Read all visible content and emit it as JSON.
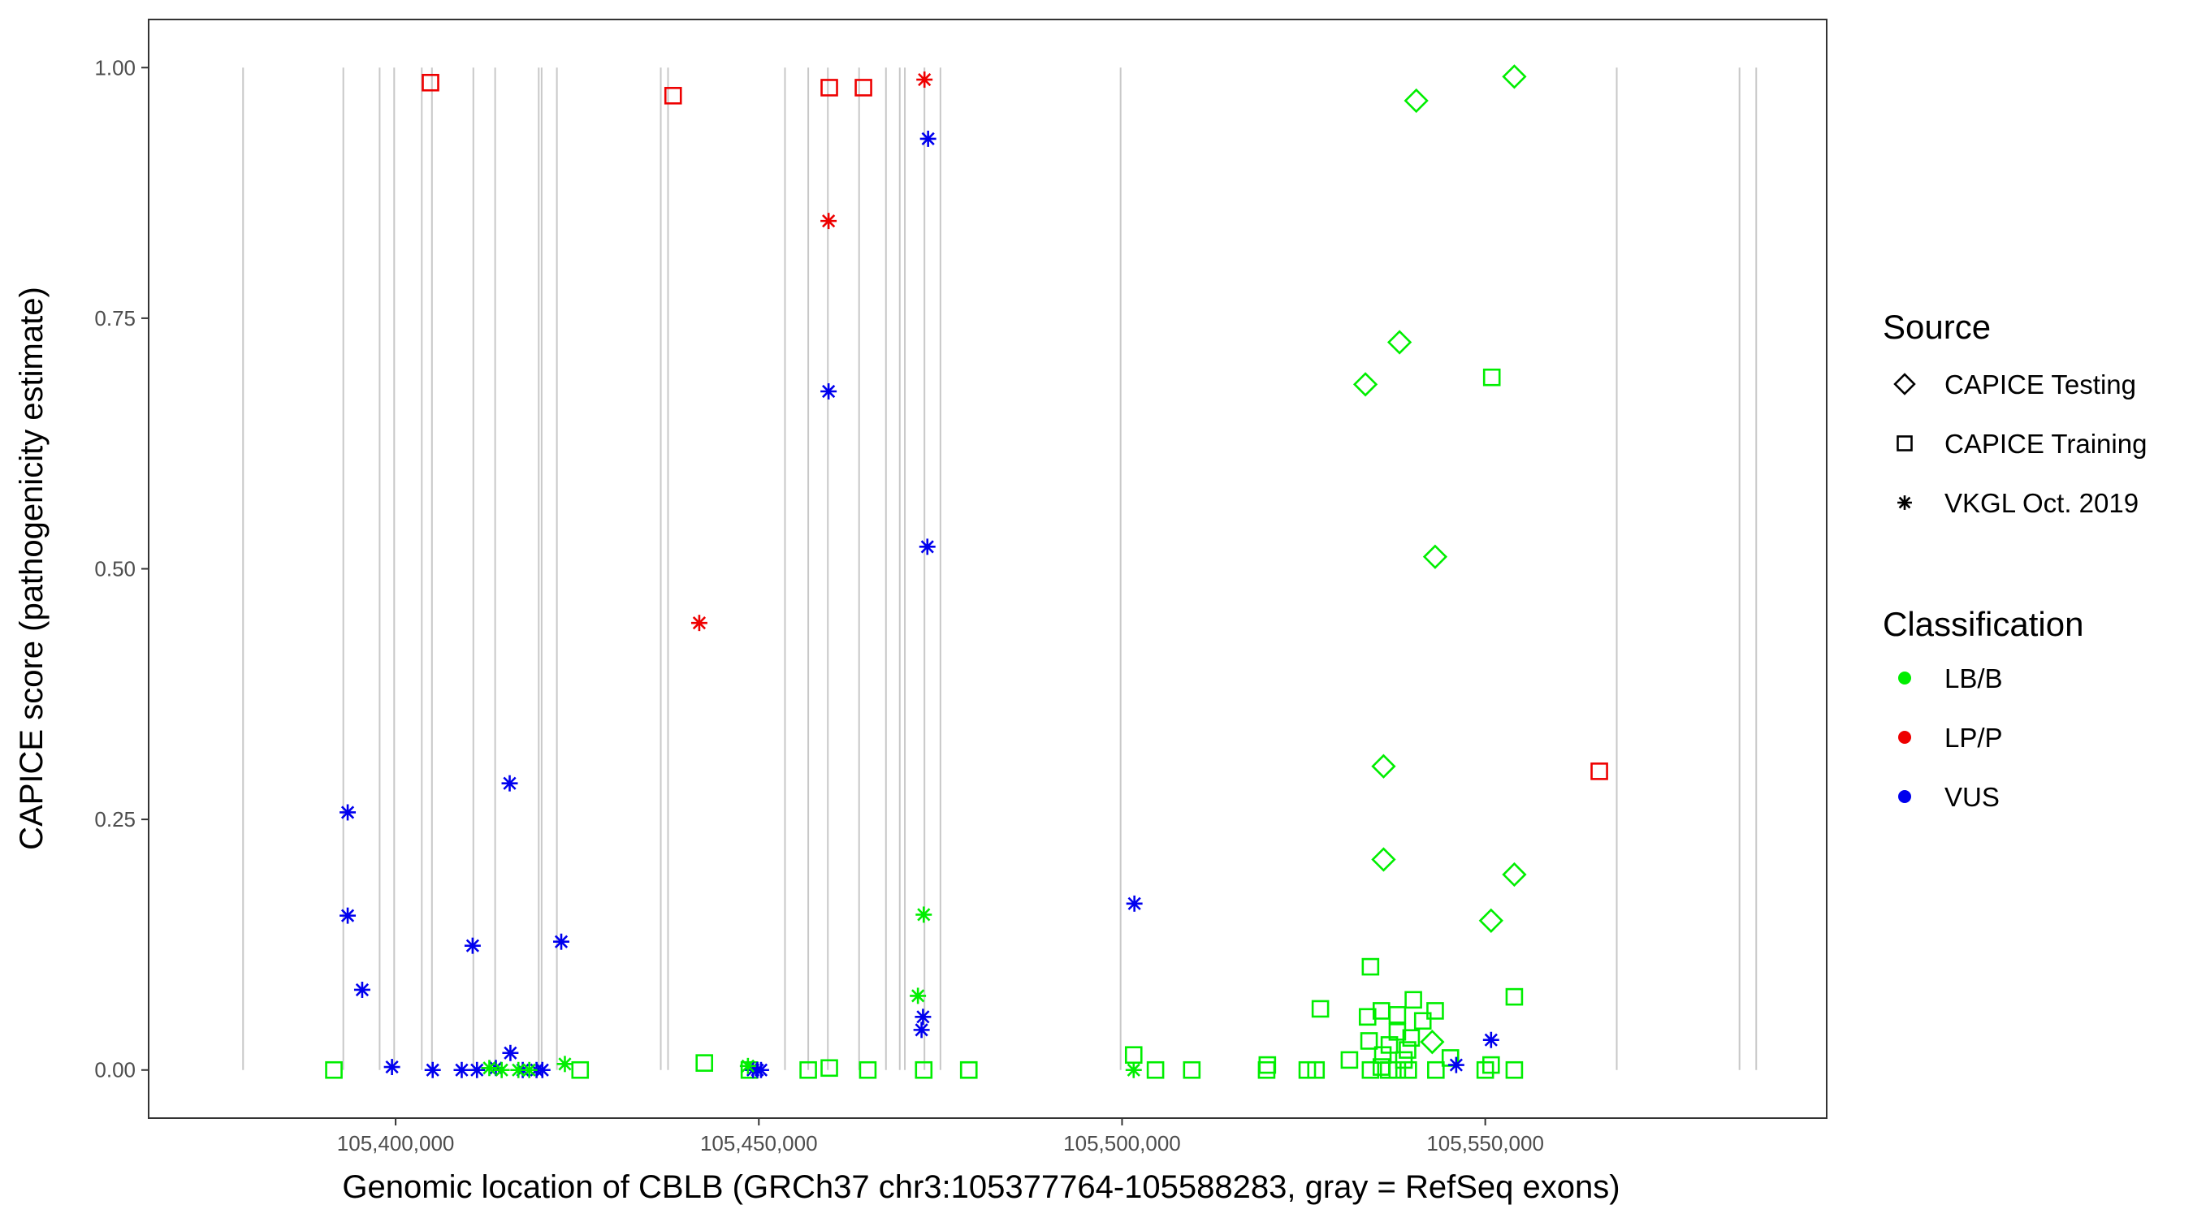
{
  "chart_data": {
    "type": "scatter",
    "xlabel": "Genomic location of CBLB (GRCh37 chr3:105377764-105588283, gray = RefSeq exons)",
    "ylabel": "CAPICE score (pathogenicity estimate)",
    "xlim": [
      105366000,
      105597000
    ],
    "ylim": [
      -0.048,
      1.048
    ],
    "x_ticks": [
      105400000,
      105450000,
      105500000,
      105550000
    ],
    "x_tick_labels": [
      "105,400,000",
      "105,450,000",
      "105,500,000",
      "105,550,000"
    ],
    "y_ticks": [
      0,
      0.25,
      0.5,
      0.75,
      1.0
    ],
    "y_tick_labels": [
      "0.00",
      "0.25",
      "0.50",
      "0.75",
      "1.00"
    ],
    "grid": false,
    "exon_lines": [
      105379000,
      105392800,
      105397800,
      105399800,
      105403600,
      105405000,
      105410700,
      105413700,
      105419700,
      105420100,
      105422200,
      105436500,
      105437500,
      105453600,
      105456800,
      105459500,
      105463800,
      105467500,
      105469400,
      105470100,
      105472800,
      105475000,
      105499800,
      105568100,
      105585000,
      105587300
    ],
    "legend": {
      "position": "right",
      "source_title": "Source",
      "source_items": [
        {
          "label": "CAPICE Testing",
          "shape": "diamond"
        },
        {
          "label": "CAPICE Training",
          "shape": "square"
        },
        {
          "label": "VKGL Oct. 2019",
          "shape": "asterisk"
        }
      ],
      "class_title": "Classification",
      "class_items": [
        {
          "label": "LB/B",
          "color": "#00ee00"
        },
        {
          "label": "LP/P",
          "color": "#ee0000"
        },
        {
          "label": "VUS",
          "color": "#0000ee"
        }
      ]
    },
    "series": [
      {
        "source": "CAPICE Testing",
        "classification": "LB/B",
        "x": [
          105540500,
          105554000,
          105538200,
          105533500,
          105543100,
          105536000,
          105536000,
          105554000,
          105550800,
          105542700
        ],
        "y": [
          0.967,
          0.991,
          0.726,
          0.684,
          0.512,
          0.303,
          0.21,
          0.195,
          0.149,
          0.028
        ]
      },
      {
        "source": "CAPICE Training",
        "classification": "LP/P",
        "x": [
          105404800,
          105438200,
          105459700,
          105464400,
          105565700
        ],
        "y": [
          0.985,
          0.972,
          0.98,
          0.98,
          0.298
        ]
      },
      {
        "source": "CAPICE Training",
        "classification": "LB/B",
        "x": [
          105550900,
          105534200,
          105527300,
          105554000,
          105540100,
          105535700,
          105537900,
          105541400,
          105533800,
          105537900,
          105539800,
          105534000,
          105543100,
          105536800,
          105539300,
          105535900,
          105545200,
          105501600,
          105538800,
          105520000,
          105531300,
          105550800,
          105391500,
          105425400,
          105442500,
          105448700,
          105456800,
          105459700,
          105465000,
          105472700,
          105478900,
          105478900,
          105504600,
          105509600,
          105519900,
          105525500,
          105526700,
          105534200,
          105536700,
          105539400,
          105543200,
          105550000,
          105554000,
          105537900,
          105535700
        ],
        "y": [
          0.691,
          0.103,
          0.061,
          0.073,
          0.07,
          0.059,
          0.055,
          0.049,
          0.053,
          0.038,
          0.032,
          0.029,
          0.059,
          0.025,
          0.02,
          0.015,
          0.012,
          0.015,
          0.01,
          0.005,
          0.01,
          0.005,
          0.0,
          0.0,
          0.007,
          0.0,
          0.0,
          0.002,
          0.0,
          0.0,
          0.0,
          0.0,
          0.0,
          0.0,
          0.0,
          0.0,
          0.0,
          0.0,
          0.0,
          0.0,
          0.0,
          0.0,
          0.0,
          0.0,
          0.003
        ]
      },
      {
        "source": "VKGL Oct. 2019",
        "classification": "LP/P",
        "x": [
          105472800,
          105459600,
          105441800
        ],
        "y": [
          0.988,
          0.847,
          0.446
        ]
      },
      {
        "source": "VKGL Oct. 2019",
        "classification": "VUS",
        "x": [
          105473300,
          105459600,
          105473200,
          105393400,
          105393400,
          105415700,
          105410600,
          105422800,
          105395400,
          105415800,
          105472600,
          105472400,
          105501700,
          105550800,
          105546000,
          105399500,
          105405100,
          105409100,
          105411200,
          105413800,
          105417500,
          105419400,
          105420200,
          105449200,
          105449800,
          105450300
        ],
        "y": [
          0.929,
          0.677,
          0.522,
          0.257,
          0.154,
          0.286,
          0.124,
          0.128,
          0.08,
          0.017,
          0.053,
          0.04,
          0.166,
          0.03,
          0.005,
          0.003,
          0.0,
          0.0,
          0.0,
          0.002,
          0.0,
          0.0,
          0.0,
          0.0,
          0.0,
          0.0
        ]
      },
      {
        "source": "VKGL Oct. 2019",
        "classification": "LB/B",
        "x": [
          105472700,
          105471900,
          105501600,
          105423300,
          105412900,
          105414600,
          105416900,
          105418400,
          105448500
        ],
        "y": [
          0.155,
          0.074,
          0.0,
          0.006,
          0.002,
          0.0,
          0.0,
          0.0,
          0.004
        ]
      }
    ]
  }
}
